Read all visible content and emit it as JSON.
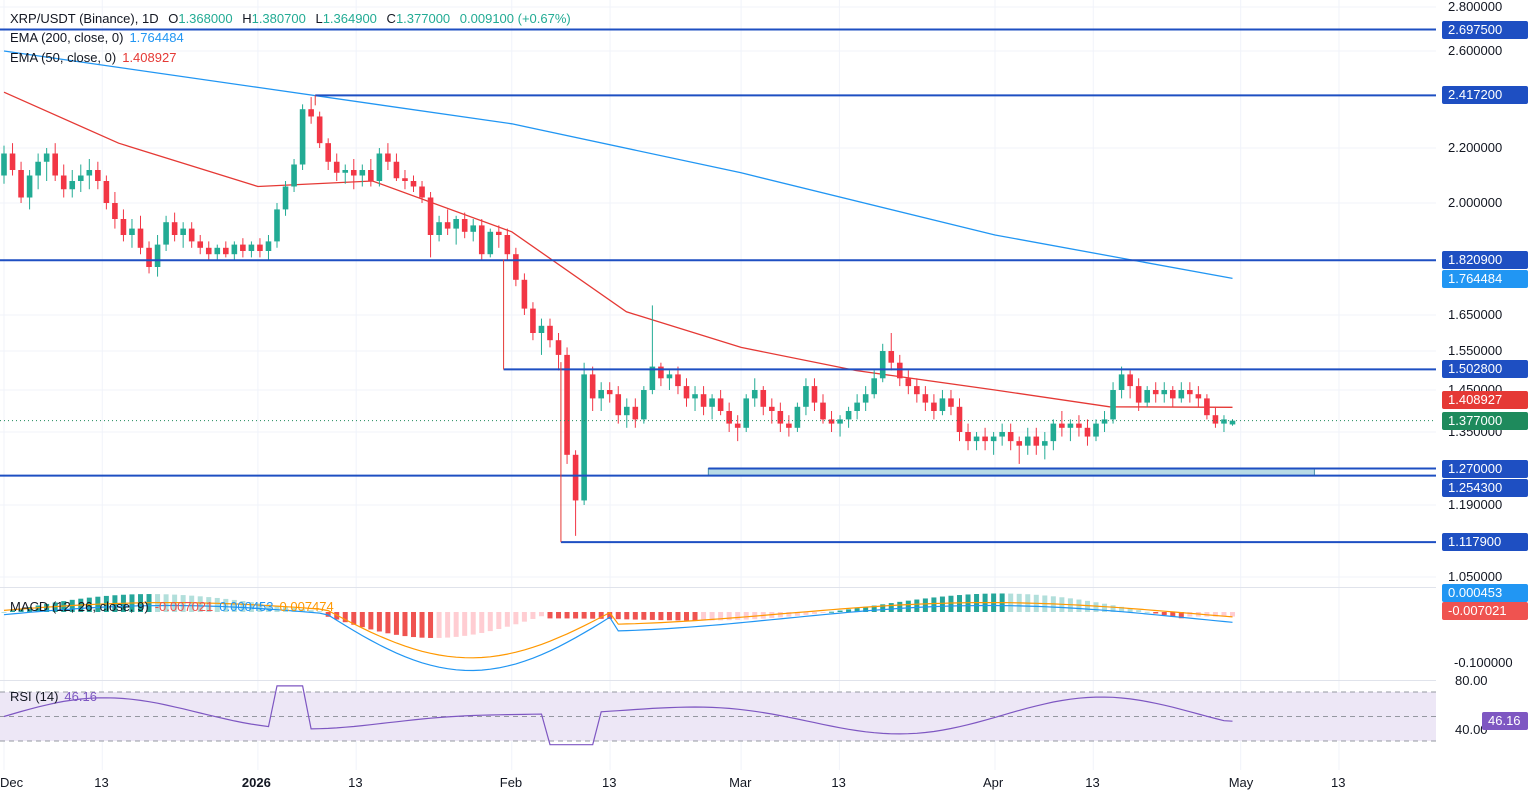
{
  "header": {
    "symbol": "XRP/USDT (Binance), 1D",
    "open_label": "O",
    "open": "1.368000",
    "high_label": "H",
    "high": "1.380700",
    "low_label": "L",
    "low": "1.364900",
    "close_label": "C",
    "close": "1.377000",
    "change": "0.009100 (+0.67%)"
  },
  "ema200": {
    "label": "EMA (200, close, 0)",
    "value": "1.764484",
    "color": "#2196f3"
  },
  "ema50": {
    "label": "EMA (50, close, 0)",
    "value": "1.408927",
    "color": "#e53935"
  },
  "macd": {
    "label": "MACD (12, 26, close, 9)",
    "hist_value": "-0.007021",
    "macd_value": "0.000453",
    "signal_value": "0.007474"
  },
  "rsi": {
    "label": "RSI (14)",
    "value": "46.16"
  },
  "price_axis": [
    "2.800000",
    "2.600000",
    "2.200000",
    "2.000000",
    "1.650000",
    "1.550000",
    "1.450000",
    "1.350000",
    "1.190000",
    "1.050000"
  ],
  "macd_axis": [
    "-0.100000"
  ],
  "rsi_axis": [
    "80.00",
    "40.00"
  ],
  "date_axis": [
    "Dec",
    "13",
    "2026",
    "13",
    "Feb",
    "13",
    "Mar",
    "13",
    "Apr",
    "13",
    "May",
    "13"
  ],
  "levels": [
    {
      "value": "2.697500",
      "color": "#1e4fc2"
    },
    {
      "value": "2.417200",
      "color": "#1e4fc2"
    },
    {
      "value": "1.820900",
      "color": "#1e4fc2"
    },
    {
      "value": "1.764484",
      "color": "#2196f3"
    },
    {
      "value": "1.502800",
      "color": "#1e4fc2"
    },
    {
      "value": "1.408927",
      "color": "#e53935"
    },
    {
      "value": "1.377000",
      "color": "#1e8a5c"
    },
    {
      "value": "1.270000",
      "color": "#1e4fc2"
    },
    {
      "value": "1.254300",
      "color": "#1e4fc2"
    },
    {
      "value": "1.117900",
      "color": "#1e4fc2"
    }
  ],
  "macd_tags": [
    {
      "value": "0.000453",
      "color": "#2196f3"
    },
    {
      "value": "-0.007021",
      "color": "#ef5350"
    }
  ],
  "rsi_tag": {
    "value": "46.16",
    "color": "#7e57c2"
  },
  "colors": {
    "up": "#22ab94",
    "down": "#f23645",
    "hline": "#1e4fc2",
    "zone": "#b8dbe6",
    "rsi_band": "#ede7f6"
  },
  "chart_data": {
    "type": "candlestick",
    "title": "XRP/USDT (Binance), 1D",
    "x_range": [
      "2025-12-01",
      "2026-05-20"
    ],
    "y_range": [
      1.0,
      2.8
    ],
    "series": [
      {
        "name": "EMA (200, close, 0)",
        "x": [
          "2025-12-01",
          "2026-01-01",
          "2026-02-01",
          "2026-03-01",
          "2026-04-01",
          "2026-04-30"
        ],
        "y": [
          2.6,
          2.45,
          2.3,
          2.11,
          1.9,
          1.764484
        ]
      },
      {
        "name": "EMA (50, close, 0)",
        "x": [
          "2025-12-01",
          "2025-12-15",
          "2026-01-01",
          "2026-01-15",
          "2026-02-01",
          "2026-02-15",
          "2026-03-01",
          "2026-03-15",
          "2026-04-01",
          "2026-04-15",
          "2026-04-30"
        ],
        "y": [
          2.43,
          2.22,
          2.06,
          2.08,
          1.91,
          1.66,
          1.56,
          1.5,
          1.45,
          1.41,
          1.408927
        ]
      }
    ],
    "candles": [
      [
        2.1,
        2.21,
        2.07,
        2.18
      ],
      [
        2.18,
        2.22,
        2.1,
        2.12
      ],
      [
        2.12,
        2.15,
        2.0,
        2.02
      ],
      [
        2.02,
        2.12,
        1.98,
        2.1
      ],
      [
        2.1,
        2.18,
        2.05,
        2.15
      ],
      [
        2.15,
        2.2,
        2.08,
        2.18
      ],
      [
        2.18,
        2.22,
        2.08,
        2.1
      ],
      [
        2.1,
        2.14,
        2.02,
        2.05
      ],
      [
        2.05,
        2.12,
        2.02,
        2.08
      ],
      [
        2.08,
        2.14,
        2.04,
        2.1
      ],
      [
        2.1,
        2.16,
        2.05,
        2.12
      ],
      [
        2.12,
        2.15,
        2.05,
        2.08
      ],
      [
        2.08,
        2.1,
        1.98,
        2.0
      ],
      [
        2.0,
        2.04,
        1.92,
        1.95
      ],
      [
        1.95,
        1.98,
        1.88,
        1.9
      ],
      [
        1.9,
        1.95,
        1.86,
        1.92
      ],
      [
        1.92,
        1.96,
        1.84,
        1.86
      ],
      [
        1.86,
        1.88,
        1.78,
        1.8
      ],
      [
        1.8,
        1.9,
        1.77,
        1.87
      ],
      [
        1.87,
        1.96,
        1.85,
        1.94
      ],
      [
        1.94,
        1.97,
        1.88,
        1.9
      ],
      [
        1.9,
        1.94,
        1.86,
        1.92
      ],
      [
        1.92,
        1.94,
        1.86,
        1.88
      ],
      [
        1.88,
        1.9,
        1.84,
        1.86
      ],
      [
        1.86,
        1.88,
        1.82,
        1.84
      ],
      [
        1.84,
        1.87,
        1.82,
        1.86
      ],
      [
        1.86,
        1.88,
        1.83,
        1.84
      ],
      [
        1.84,
        1.88,
        1.82,
        1.87
      ],
      [
        1.87,
        1.89,
        1.83,
        1.85
      ],
      [
        1.85,
        1.88,
        1.83,
        1.87
      ],
      [
        1.87,
        1.89,
        1.83,
        1.85
      ],
      [
        1.85,
        1.9,
        1.82,
        1.88
      ],
      [
        1.88,
        2.0,
        1.86,
        1.98
      ],
      [
        1.98,
        2.08,
        1.96,
        2.06
      ],
      [
        2.06,
        2.16,
        2.04,
        2.14
      ],
      [
        2.14,
        2.38,
        2.12,
        2.36
      ],
      [
        2.36,
        2.41,
        2.3,
        2.33
      ],
      [
        2.33,
        2.35,
        2.2,
        2.22
      ],
      [
        2.22,
        2.24,
        2.12,
        2.15
      ],
      [
        2.15,
        2.18,
        2.08,
        2.11
      ],
      [
        2.11,
        2.14,
        2.07,
        2.12
      ],
      [
        2.12,
        2.16,
        2.05,
        2.1
      ],
      [
        2.1,
        2.14,
        2.06,
        2.12
      ],
      [
        2.12,
        2.16,
        2.06,
        2.08
      ],
      [
        2.08,
        2.2,
        2.06,
        2.18
      ],
      [
        2.18,
        2.22,
        2.12,
        2.15
      ],
      [
        2.15,
        2.18,
        2.08,
        2.09
      ],
      [
        2.09,
        2.12,
        2.05,
        2.08
      ],
      [
        2.08,
        2.1,
        2.04,
        2.06
      ],
      [
        2.06,
        2.08,
        2.0,
        2.02
      ],
      [
        2.02,
        2.04,
        1.83,
        1.9
      ],
      [
        1.9,
        1.96,
        1.88,
        1.94
      ],
      [
        1.94,
        1.98,
        1.9,
        1.92
      ],
      [
        1.92,
        1.96,
        1.87,
        1.95
      ],
      [
        1.95,
        1.97,
        1.89,
        1.91
      ],
      [
        1.91,
        1.95,
        1.88,
        1.93
      ],
      [
        1.93,
        1.95,
        1.82,
        1.84
      ],
      [
        1.84,
        1.92,
        1.83,
        1.91
      ],
      [
        1.91,
        1.93,
        1.86,
        1.9
      ],
      [
        1.9,
        1.92,
        1.82,
        1.84
      ],
      [
        1.84,
        1.86,
        1.74,
        1.76
      ],
      [
        1.76,
        1.78,
        1.65,
        1.67
      ],
      [
        1.67,
        1.69,
        1.58,
        1.6
      ],
      [
        1.6,
        1.64,
        1.54,
        1.62
      ],
      [
        1.62,
        1.64,
        1.56,
        1.58
      ],
      [
        1.58,
        1.6,
        1.5,
        1.54
      ],
      [
        1.54,
        1.56,
        1.28,
        1.3
      ],
      [
        1.3,
        1.31,
        1.13,
        1.2
      ],
      [
        1.2,
        1.52,
        1.19,
        1.49
      ],
      [
        1.49,
        1.51,
        1.4,
        1.43
      ],
      [
        1.43,
        1.47,
        1.4,
        1.45
      ],
      [
        1.45,
        1.47,
        1.42,
        1.44
      ],
      [
        1.44,
        1.46,
        1.37,
        1.39
      ],
      [
        1.39,
        1.43,
        1.36,
        1.41
      ],
      [
        1.41,
        1.43,
        1.36,
        1.38
      ],
      [
        1.38,
        1.46,
        1.37,
        1.45
      ],
      [
        1.45,
        1.68,
        1.44,
        1.51
      ],
      [
        1.51,
        1.52,
        1.46,
        1.48
      ],
      [
        1.48,
        1.5,
        1.45,
        1.49
      ],
      [
        1.49,
        1.51,
        1.44,
        1.46
      ],
      [
        1.46,
        1.48,
        1.41,
        1.43
      ],
      [
        1.43,
        1.46,
        1.4,
        1.44
      ],
      [
        1.44,
        1.46,
        1.39,
        1.41
      ],
      [
        1.41,
        1.44,
        1.38,
        1.43
      ],
      [
        1.43,
        1.45,
        1.39,
        1.4
      ],
      [
        1.4,
        1.42,
        1.35,
        1.37
      ],
      [
        1.37,
        1.39,
        1.33,
        1.36
      ],
      [
        1.36,
        1.44,
        1.35,
        1.43
      ],
      [
        1.43,
        1.48,
        1.41,
        1.45
      ],
      [
        1.45,
        1.46,
        1.39,
        1.41
      ],
      [
        1.41,
        1.43,
        1.37,
        1.4
      ],
      [
        1.4,
        1.42,
        1.35,
        1.37
      ],
      [
        1.37,
        1.39,
        1.34,
        1.36
      ],
      [
        1.36,
        1.42,
        1.35,
        1.41
      ],
      [
        1.41,
        1.48,
        1.39,
        1.46
      ],
      [
        1.46,
        1.48,
        1.4,
        1.42
      ],
      [
        1.42,
        1.44,
        1.37,
        1.38
      ],
      [
        1.38,
        1.4,
        1.35,
        1.37
      ],
      [
        1.37,
        1.39,
        1.34,
        1.38
      ],
      [
        1.38,
        1.41,
        1.36,
        1.4
      ],
      [
        1.4,
        1.44,
        1.38,
        1.42
      ],
      [
        1.42,
        1.46,
        1.4,
        1.44
      ],
      [
        1.44,
        1.5,
        1.43,
        1.48
      ],
      [
        1.48,
        1.57,
        1.47,
        1.55
      ],
      [
        1.55,
        1.6,
        1.5,
        1.52
      ],
      [
        1.52,
        1.54,
        1.46,
        1.48
      ],
      [
        1.48,
        1.5,
        1.44,
        1.46
      ],
      [
        1.46,
        1.48,
        1.42,
        1.44
      ],
      [
        1.44,
        1.46,
        1.4,
        1.42
      ],
      [
        1.42,
        1.44,
        1.38,
        1.4
      ],
      [
        1.4,
        1.45,
        1.39,
        1.43
      ],
      [
        1.43,
        1.45,
        1.39,
        1.41
      ],
      [
        1.41,
        1.43,
        1.33,
        1.35
      ],
      [
        1.35,
        1.37,
        1.31,
        1.33
      ],
      [
        1.33,
        1.35,
        1.31,
        1.34
      ],
      [
        1.34,
        1.36,
        1.31,
        1.33
      ],
      [
        1.33,
        1.35,
        1.3,
        1.34
      ],
      [
        1.34,
        1.37,
        1.32,
        1.35
      ],
      [
        1.35,
        1.37,
        1.31,
        1.33
      ],
      [
        1.33,
        1.34,
        1.28,
        1.32
      ],
      [
        1.32,
        1.36,
        1.3,
        1.34
      ],
      [
        1.34,
        1.36,
        1.3,
        1.32
      ],
      [
        1.32,
        1.35,
        1.29,
        1.33
      ],
      [
        1.33,
        1.38,
        1.31,
        1.37
      ],
      [
        1.37,
        1.4,
        1.34,
        1.36
      ],
      [
        1.36,
        1.38,
        1.33,
        1.37
      ],
      [
        1.37,
        1.39,
        1.34,
        1.36
      ],
      [
        1.36,
        1.38,
        1.32,
        1.34
      ],
      [
        1.34,
        1.38,
        1.33,
        1.37
      ],
      [
        1.37,
        1.4,
        1.35,
        1.38
      ],
      [
        1.38,
        1.47,
        1.37,
        1.45
      ],
      [
        1.45,
        1.51,
        1.43,
        1.49
      ],
      [
        1.49,
        1.5,
        1.43,
        1.46
      ],
      [
        1.46,
        1.48,
        1.4,
        1.42
      ],
      [
        1.42,
        1.46,
        1.41,
        1.45
      ],
      [
        1.45,
        1.47,
        1.42,
        1.44
      ],
      [
        1.44,
        1.47,
        1.42,
        1.45
      ],
      [
        1.45,
        1.46,
        1.41,
        1.43
      ],
      [
        1.43,
        1.47,
        1.42,
        1.45
      ],
      [
        1.45,
        1.47,
        1.42,
        1.44
      ],
      [
        1.44,
        1.46,
        1.41,
        1.43
      ],
      [
        1.43,
        1.44,
        1.38,
        1.39
      ],
      [
        1.39,
        1.41,
        1.36,
        1.37
      ],
      [
        1.37,
        1.39,
        1.35,
        1.38
      ],
      [
        1.368,
        1.3807,
        1.3649,
        1.377
      ]
    ],
    "horizontal_levels": [
      2.6975,
      2.4172,
      1.8209,
      1.5028,
      1.27,
      1.2543,
      1.1179
    ],
    "support_zone": [
      1.2543,
      1.27
    ],
    "macd": {
      "macd": 0.000453,
      "signal": 0.007474,
      "histogram": -0.007021
    },
    "rsi": {
      "value": 46.16,
      "bands": [
        70,
        50,
        30
      ]
    },
    "xlabel": "",
    "ylabel": "",
    "grid": true
  }
}
